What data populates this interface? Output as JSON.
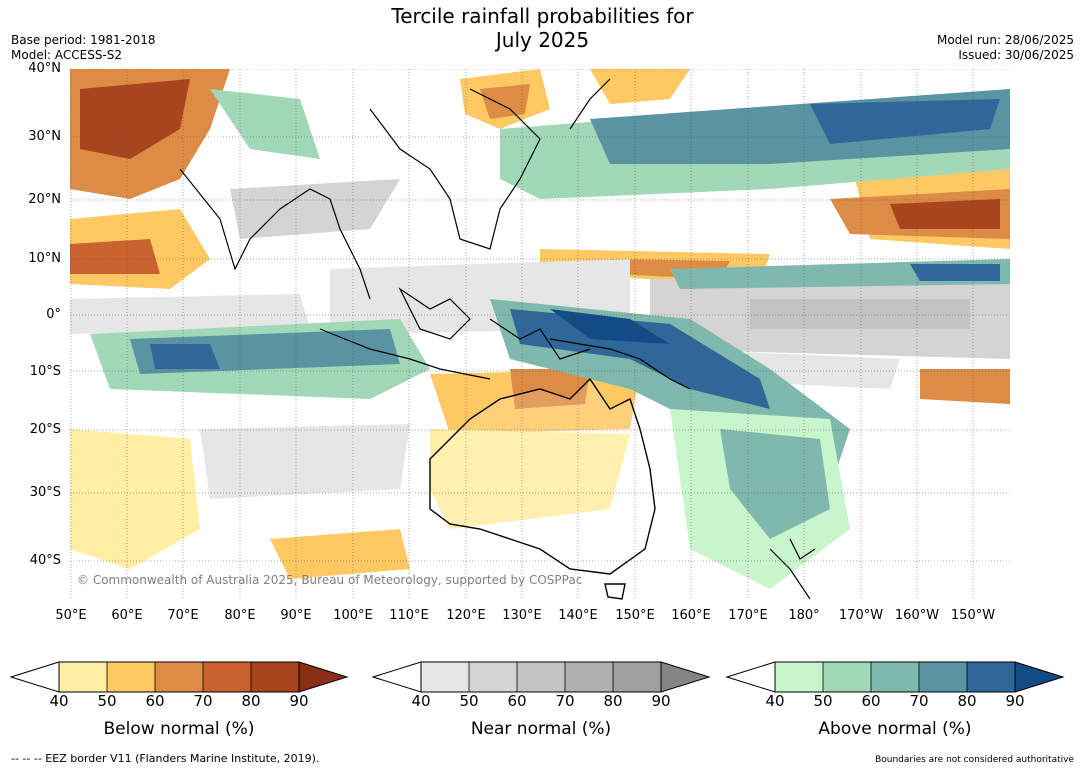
{
  "header": {
    "title_line1": "Tercile rainfall probabilities for",
    "title_line2": "July 2025",
    "base_period": "Base period: 1981-2018",
    "model": "Model: ACCESS-S2",
    "model_run": "Model run: 28/06/2025",
    "issued": "Issued: 30/06/2025"
  },
  "map": {
    "lat_labels": [
      "40°N",
      "30°N",
      "20°N",
      "10°N",
      "0°",
      "10°S",
      "20°S",
      "30°S",
      "40°S"
    ],
    "lon_labels": [
      "50°E",
      "60°E",
      "70°E",
      "80°E",
      "90°E",
      "100°E",
      "110°E",
      "120°E",
      "130°E",
      "140°E",
      "150°E",
      "160°E",
      "170°E",
      "180°",
      "170°W",
      "160°W",
      "150°W"
    ],
    "copyright": "© Commonwealth of Australia 2025, Bureau of Meteorology, supported by COSPPac",
    "colors": {
      "below": [
        "#ffeea3",
        "#fec863",
        "#dc8c44",
        "#c8622f",
        "#a8441e",
        "#8a2e17"
      ],
      "near": [
        "#e6e6e6",
        "#d4d4d4",
        "#c4c4c4",
        "#b0b0b0",
        "#a0a0a0",
        "#858585"
      ],
      "above": [
        "#c8f5cb",
        "#a0d8b8",
        "#7fb9ad",
        "#5a93a2",
        "#2f6898",
        "#134b86"
      ],
      "land_outline": "#000000",
      "border": "#808080"
    }
  },
  "legend": {
    "below": {
      "label": "Below normal (%)",
      "ticks": [
        "40",
        "50",
        "60",
        "70",
        "80",
        "90"
      ]
    },
    "near": {
      "label": "Near normal (%)",
      "ticks": [
        "40",
        "50",
        "60",
        "70",
        "80",
        "90"
      ]
    },
    "above": {
      "label": "Above normal (%)",
      "ticks": [
        "40",
        "50",
        "60",
        "70",
        "80",
        "90"
      ]
    }
  },
  "footer": {
    "eez_note": "--  --  -- EEZ border V11 (Flanders Marine Institute, 2019).",
    "disclaimer": "Boundaries are not considered authoritative"
  }
}
